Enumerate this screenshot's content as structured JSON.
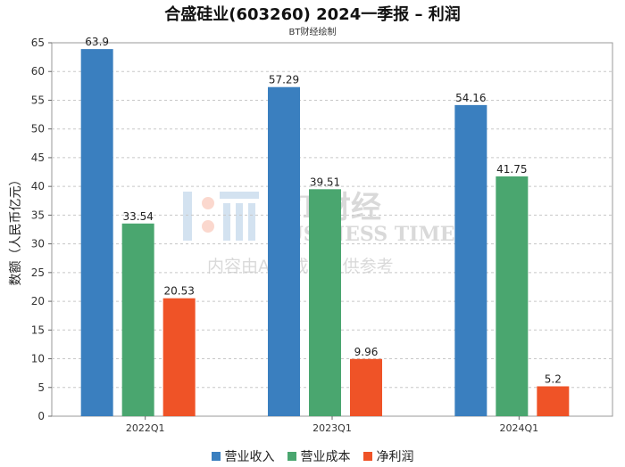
{
  "title": "合盛硅业(603260) 2024一季报 – 利润",
  "subtitle": "BT财经绘制",
  "watermark": {
    "brand": "BT财经",
    "line2": "BUSINESS TIMES",
    "line3": "内容由AI生成，仅供参考"
  },
  "legend": [
    {
      "label": "营业收入",
      "color": "#3a7fbf"
    },
    {
      "label": "营业成本",
      "color": "#4aa66f"
    },
    {
      "label": "净利润",
      "color": "#ef5327"
    }
  ],
  "chart_data": {
    "type": "bar",
    "categories": [
      "2022Q1",
      "2023Q1",
      "2024Q1"
    ],
    "series": [
      {
        "name": "营业收入",
        "values": [
          63.9,
          57.29,
          54.16
        ],
        "color": "#3a7fbf"
      },
      {
        "name": "营业成本",
        "values": [
          33.54,
          39.51,
          41.75
        ],
        "color": "#4aa66f"
      },
      {
        "name": "净利润",
        "values": [
          20.53,
          9.96,
          5.2
        ],
        "color": "#ef5327"
      }
    ],
    "ylabel": "数额（人民币亿元）",
    "xlabel": "",
    "ylim": [
      0,
      65
    ],
    "yticks": [
      0,
      5,
      10,
      15,
      20,
      25,
      30,
      35,
      40,
      45,
      50,
      55,
      60,
      65
    ],
    "grid": true,
    "legend_position": "bottom"
  }
}
